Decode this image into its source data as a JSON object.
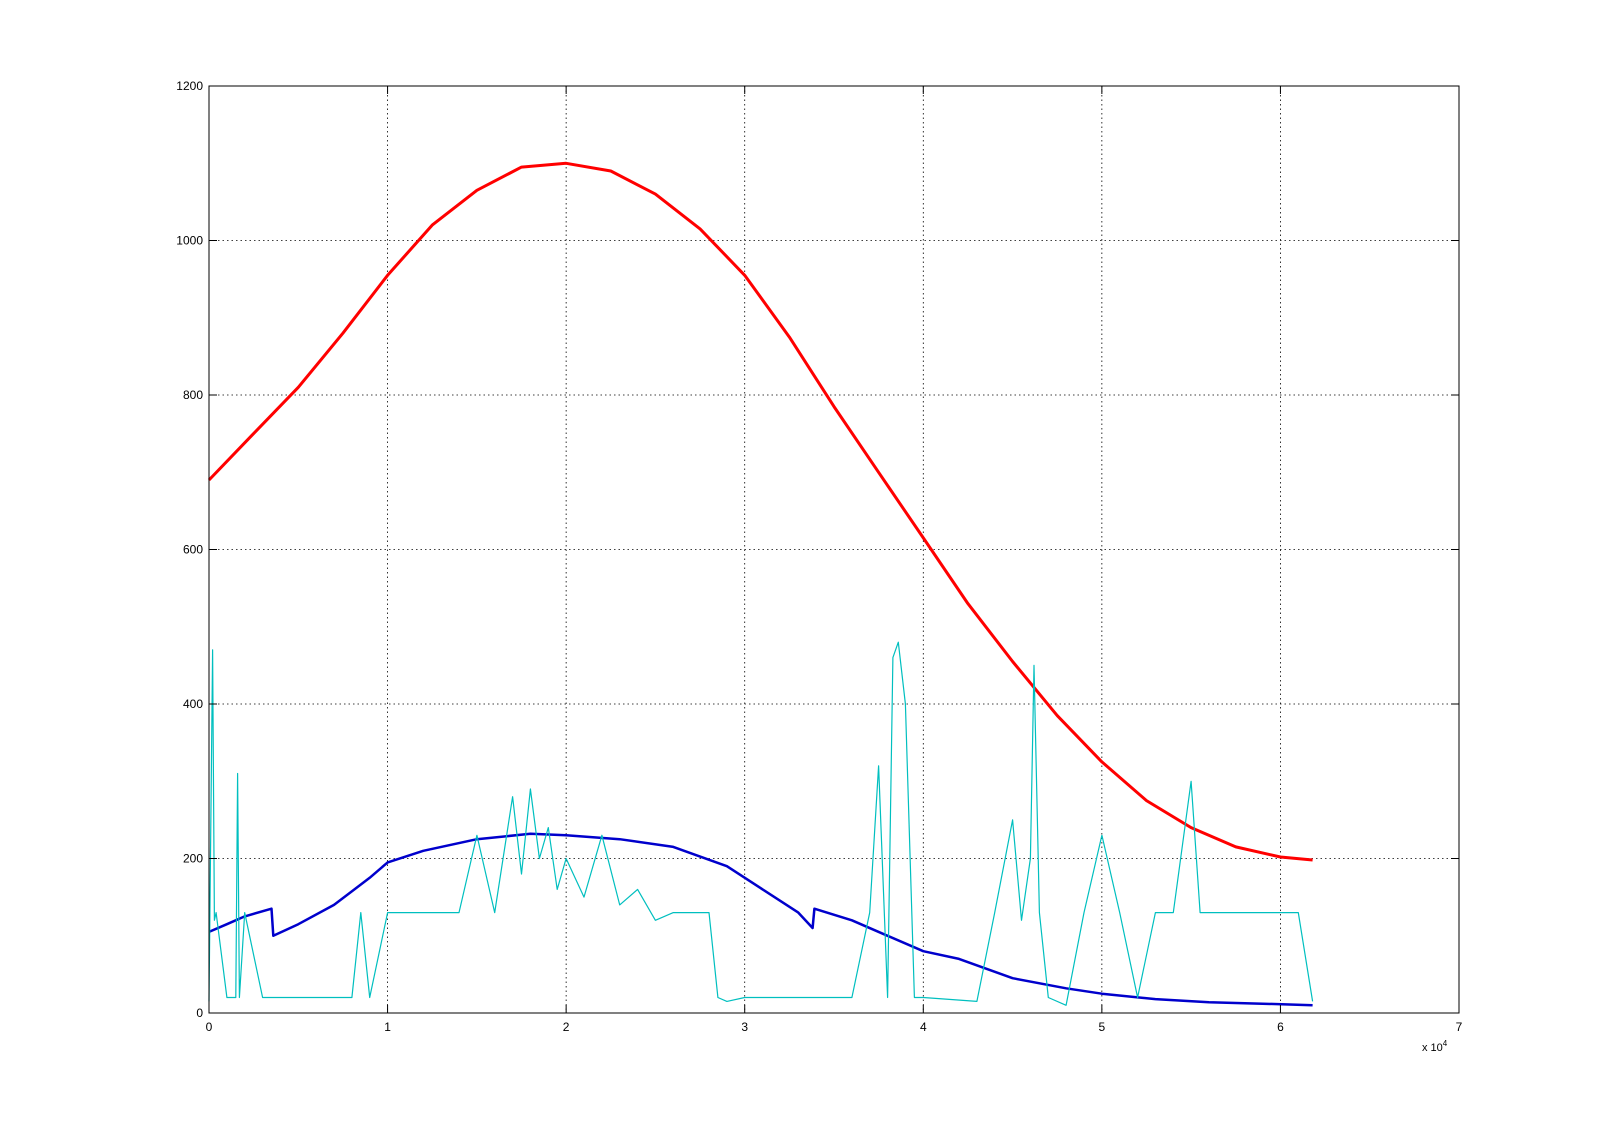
{
  "chart_data": {
    "type": "line",
    "title": "",
    "xlabel": "",
    "ylabel": "",
    "x_exponent_label": "x 10",
    "x_exponent_power": "4",
    "xlim": [
      0,
      7
    ],
    "ylim": [
      0,
      1200
    ],
    "xticks": [
      0,
      1,
      2,
      3,
      4,
      5,
      6,
      7
    ],
    "yticks": [
      0,
      200,
      400,
      600,
      800,
      1000,
      1200
    ],
    "grid": true,
    "legend": "none",
    "series": [
      {
        "color": "#ff0000",
        "x": [
          0.0,
          0.25,
          0.5,
          0.75,
          1.0,
          1.25,
          1.5,
          1.75,
          2.0,
          2.25,
          2.5,
          2.75,
          3.0,
          3.25,
          3.5,
          3.75,
          4.0,
          4.25,
          4.5,
          4.75,
          5.0,
          5.25,
          5.5,
          5.75,
          6.0,
          6.18
        ],
        "y": [
          690,
          750,
          810,
          880,
          955,
          1020,
          1065,
          1095,
          1100,
          1090,
          1060,
          1015,
          955,
          875,
          785,
          700,
          615,
          530,
          455,
          385,
          325,
          275,
          240,
          215,
          202,
          198
        ]
      },
      {
        "color": "#0000cc",
        "x": [
          0.0,
          0.1,
          0.2,
          0.35,
          0.36,
          0.5,
          0.7,
          0.9,
          1.0,
          1.2,
          1.5,
          1.8,
          2.0,
          2.3,
          2.6,
          2.9,
          3.1,
          3.3,
          3.38,
          3.39,
          3.6,
          3.8,
          4.0,
          4.2,
          4.5,
          4.8,
          5.0,
          5.3,
          5.6,
          5.9,
          6.18
        ],
        "y": [
          105,
          115,
          125,
          135,
          100,
          115,
          140,
          175,
          195,
          210,
          225,
          232,
          230,
          225,
          215,
          190,
          160,
          130,
          110,
          135,
          120,
          100,
          80,
          70,
          45,
          32,
          25,
          18,
          14,
          12,
          10
        ]
      },
      {
        "color": "#00bfbf",
        "x": [
          0.0,
          0.02,
          0.03,
          0.04,
          0.1,
          0.15,
          0.16,
          0.17,
          0.2,
          0.3,
          0.5,
          0.8,
          0.85,
          0.9,
          1.0,
          1.2,
          1.4,
          1.5,
          1.6,
          1.7,
          1.75,
          1.8,
          1.85,
          1.9,
          1.95,
          2.0,
          2.1,
          2.2,
          2.3,
          2.4,
          2.5,
          2.6,
          2.7,
          2.8,
          2.85,
          2.9,
          3.0,
          3.4,
          3.6,
          3.7,
          3.75,
          3.8,
          3.83,
          3.86,
          3.9,
          3.95,
          4.0,
          4.3,
          4.4,
          4.5,
          4.55,
          4.6,
          4.62,
          4.65,
          4.7,
          4.8,
          4.9,
          5.0,
          5.1,
          5.2,
          5.3,
          5.4,
          5.5,
          5.55,
          5.6,
          5.7,
          5.8,
          5.9,
          6.0,
          6.1,
          6.18
        ],
        "y": [
          15,
          470,
          120,
          130,
          20,
          20,
          310,
          20,
          130,
          20,
          20,
          20,
          130,
          20,
          130,
          130,
          130,
          230,
          130,
          280,
          180,
          290,
          200,
          240,
          160,
          200,
          150,
          230,
          140,
          160,
          120,
          130,
          130,
          130,
          20,
          15,
          20,
          20,
          20,
          130,
          320,
          20,
          460,
          480,
          400,
          20,
          20,
          15,
          130,
          250,
          120,
          200,
          450,
          130,
          20,
          10,
          130,
          230,
          130,
          20,
          130,
          130,
          300,
          130,
          130,
          130,
          130,
          130,
          130,
          130,
          15
        ]
      }
    ]
  }
}
